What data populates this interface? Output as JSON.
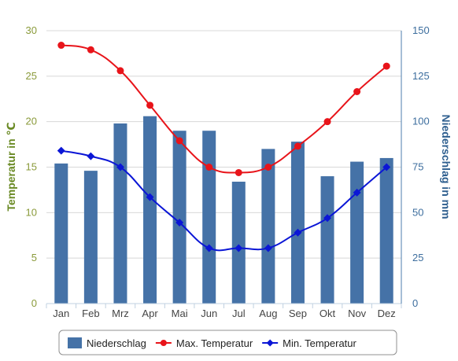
{
  "chart_data": {
    "type": "bar",
    "categories": [
      "Jan",
      "Feb",
      "Mrz",
      "Apr",
      "Mai",
      "Jun",
      "Jul",
      "Aug",
      "Sep",
      "Okt",
      "Nov",
      "Dez"
    ],
    "y_left": {
      "label": "Temperatur in ℃",
      "range": [
        0,
        30
      ],
      "ticks": [
        0,
        5,
        10,
        15,
        20,
        25,
        30
      ]
    },
    "y_right": {
      "label": "Niederschlag in mm",
      "range": [
        0,
        150
      ],
      "ticks": [
        0,
        25,
        50,
        75,
        100,
        125,
        150
      ]
    },
    "grid": true,
    "legend": "bottom",
    "series": [
      {
        "name": "Niederschlag",
        "type": "bar",
        "axis": "right",
        "color": "#4572a7",
        "values": [
          77,
          73,
          99,
          103,
          95,
          95,
          67,
          85,
          89,
          70,
          78,
          80
        ]
      },
      {
        "name": "Max. Temperatur",
        "type": "line",
        "axis": "left",
        "color": "#e8141a",
        "marker": "circle",
        "values": [
          28.4,
          27.9,
          25.6,
          21.8,
          17.9,
          15.0,
          14.4,
          15.0,
          17.3,
          20.0,
          23.3,
          26.1
        ]
      },
      {
        "name": "Min. Temperatur",
        "type": "line",
        "axis": "left",
        "color": "#0b16d6",
        "marker": "diamond",
        "values": [
          16.8,
          16.2,
          15.0,
          11.7,
          8.9,
          6.1,
          6.1,
          6.1,
          7.8,
          9.4,
          12.2,
          15.0
        ]
      }
    ]
  }
}
